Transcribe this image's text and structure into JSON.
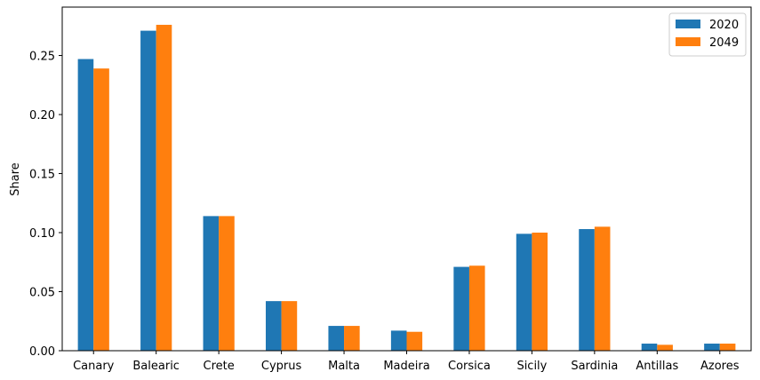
{
  "chart_data": {
    "type": "bar",
    "title": "",
    "xlabel": "",
    "ylabel": "Share",
    "ylim": [
      0,
      0.291
    ],
    "yticks": [
      "0.00",
      "0.05",
      "0.10",
      "0.15",
      "0.20",
      "0.25"
    ],
    "categories": [
      "Canary",
      "Balearic",
      "Crete",
      "Cyprus",
      "Malta",
      "Madeira",
      "Corsica",
      "Sicily",
      "Sardinia",
      "Antillas",
      "Azores"
    ],
    "series": [
      {
        "name": "2020",
        "color": "#1f77b4",
        "values": [
          0.247,
          0.271,
          0.114,
          0.042,
          0.021,
          0.017,
          0.071,
          0.099,
          0.103,
          0.006,
          0.006
        ]
      },
      {
        "name": "2049",
        "color": "#ff7f0e",
        "values": [
          0.239,
          0.276,
          0.114,
          0.042,
          0.021,
          0.016,
          0.072,
          0.1,
          0.105,
          0.005,
          0.006
        ]
      }
    ],
    "legend_position": "top-right",
    "grid": false
  }
}
